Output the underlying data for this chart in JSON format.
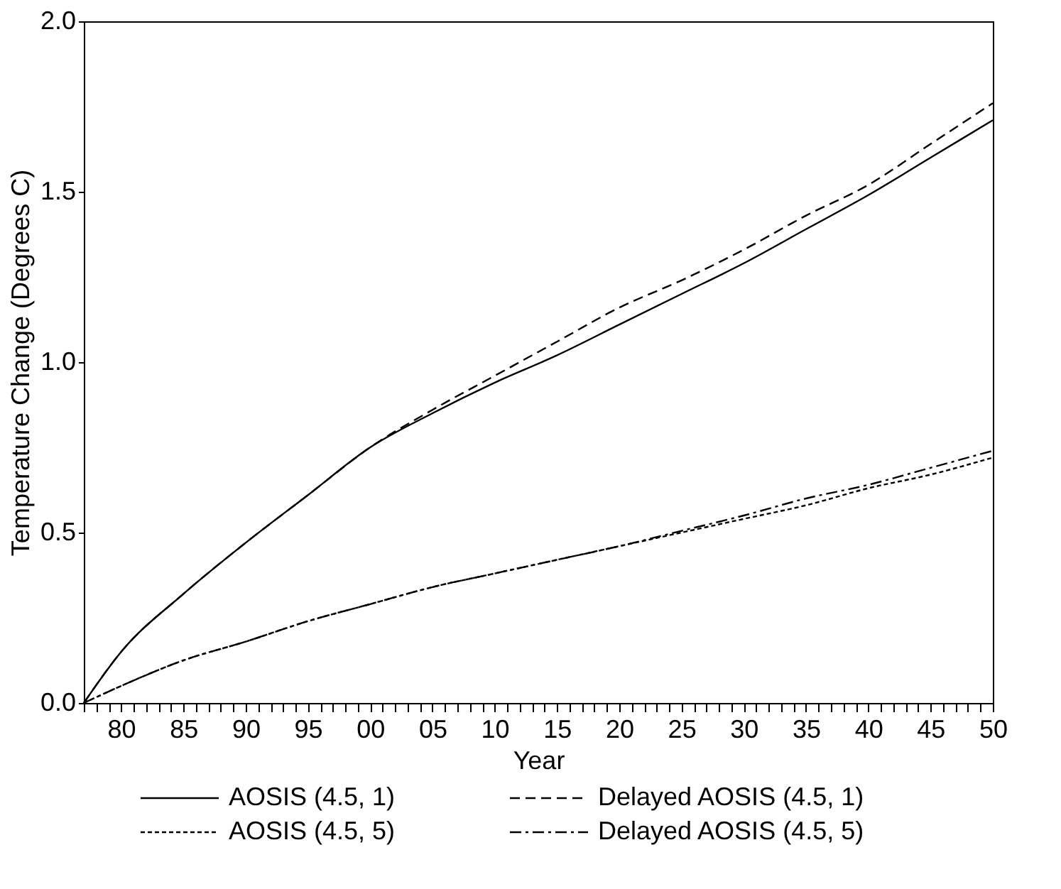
{
  "chart_data": {
    "type": "line",
    "xlabel": "Year",
    "ylabel": "Temperature Change (Degrees C)",
    "xlim": [
      1977,
      2050
    ],
    "ylim": [
      0,
      2.0
    ],
    "xticks": [
      {
        "value": 1977,
        "label": null
      },
      {
        "value": 1978,
        "label": null
      },
      {
        "value": 1979,
        "label": null
      },
      {
        "value": 1980,
        "label": "80"
      },
      {
        "value": 1981,
        "label": null
      },
      {
        "value": 1982,
        "label": null
      },
      {
        "value": 1983,
        "label": null
      },
      {
        "value": 1984,
        "label": null
      },
      {
        "value": 1985,
        "label": "85"
      },
      {
        "value": 1986,
        "label": null
      },
      {
        "value": 1987,
        "label": null
      },
      {
        "value": 1988,
        "label": null
      },
      {
        "value": 1989,
        "label": null
      },
      {
        "value": 1990,
        "label": "90"
      },
      {
        "value": 1991,
        "label": null
      },
      {
        "value": 1992,
        "label": null
      },
      {
        "value": 1993,
        "label": null
      },
      {
        "value": 1994,
        "label": null
      },
      {
        "value": 1995,
        "label": "95"
      },
      {
        "value": 1996,
        "label": null
      },
      {
        "value": 1997,
        "label": null
      },
      {
        "value": 1998,
        "label": null
      },
      {
        "value": 1999,
        "label": null
      },
      {
        "value": 2000,
        "label": "00"
      },
      {
        "value": 2001,
        "label": null
      },
      {
        "value": 2002,
        "label": null
      },
      {
        "value": 2003,
        "label": null
      },
      {
        "value": 2004,
        "label": null
      },
      {
        "value": 2005,
        "label": "05"
      },
      {
        "value": 2006,
        "label": null
      },
      {
        "value": 2007,
        "label": null
      },
      {
        "value": 2008,
        "label": null
      },
      {
        "value": 2009,
        "label": null
      },
      {
        "value": 2010,
        "label": "10"
      },
      {
        "value": 2011,
        "label": null
      },
      {
        "value": 2012,
        "label": null
      },
      {
        "value": 2013,
        "label": null
      },
      {
        "value": 2014,
        "label": null
      },
      {
        "value": 2015,
        "label": "15"
      },
      {
        "value": 2016,
        "label": null
      },
      {
        "value": 2017,
        "label": null
      },
      {
        "value": 2018,
        "label": null
      },
      {
        "value": 2019,
        "label": null
      },
      {
        "value": 2020,
        "label": "20"
      },
      {
        "value": 2021,
        "label": null
      },
      {
        "value": 2022,
        "label": null
      },
      {
        "value": 2023,
        "label": null
      },
      {
        "value": 2024,
        "label": null
      },
      {
        "value": 2025,
        "label": "25"
      },
      {
        "value": 2026,
        "label": null
      },
      {
        "value": 2027,
        "label": null
      },
      {
        "value": 2028,
        "label": null
      },
      {
        "value": 2029,
        "label": null
      },
      {
        "value": 2030,
        "label": "30"
      },
      {
        "value": 2031,
        "label": null
      },
      {
        "value": 2032,
        "label": null
      },
      {
        "value": 2033,
        "label": null
      },
      {
        "value": 2034,
        "label": null
      },
      {
        "value": 2035,
        "label": "35"
      },
      {
        "value": 2036,
        "label": null
      },
      {
        "value": 2037,
        "label": null
      },
      {
        "value": 2038,
        "label": null
      },
      {
        "value": 2039,
        "label": null
      },
      {
        "value": 2040,
        "label": "40"
      },
      {
        "value": 2041,
        "label": null
      },
      {
        "value": 2042,
        "label": null
      },
      {
        "value": 2043,
        "label": null
      },
      {
        "value": 2044,
        "label": null
      },
      {
        "value": 2045,
        "label": "45"
      },
      {
        "value": 2046,
        "label": null
      },
      {
        "value": 2047,
        "label": null
      },
      {
        "value": 2048,
        "label": null
      },
      {
        "value": 2049,
        "label": null
      },
      {
        "value": 2050,
        "label": "50"
      }
    ],
    "yticks": [
      {
        "value": 0,
        "label": "0.0"
      },
      {
        "value": 0.5,
        "label": "0.5"
      },
      {
        "value": 1.0,
        "label": "1.0"
      },
      {
        "value": 1.5,
        "label": "1.5"
      },
      {
        "value": 2.0,
        "label": "2.0"
      }
    ],
    "x": [
      1977,
      1980,
      1985,
      1990,
      1995,
      2000,
      2005,
      2010,
      2015,
      2020,
      2025,
      2030,
      2035,
      2040,
      2045,
      2050
    ],
    "legend": "bottom",
    "grid": false,
    "marker": "none",
    "series": [
      {
        "name": "AOSIS (4.5, 1)",
        "color": "#000000",
        "line_style": "solid",
        "values": [
          0,
          0.15,
          0.32,
          0.47,
          0.61,
          0.75,
          0.85,
          0.94,
          1.02,
          1.11,
          1.2,
          1.29,
          1.39,
          1.49,
          1.6,
          1.71
        ]
      },
      {
        "name": "Delayed AOSIS (4.5, 1)",
        "color": "#000000",
        "line_style": "dashed",
        "values": [
          0,
          0.15,
          0.32,
          0.47,
          0.61,
          0.75,
          0.86,
          0.96,
          1.06,
          1.16,
          1.24,
          1.33,
          1.43,
          1.52,
          1.64,
          1.76
        ]
      },
      {
        "name": "AOSIS (4.5, 5)",
        "color": "#000000",
        "line_style": "dotted",
        "values": [
          0,
          0.05,
          0.125,
          0.18,
          0.24,
          0.29,
          0.34,
          0.38,
          0.42,
          0.46,
          0.5,
          0.54,
          0.58,
          0.63,
          0.67,
          0.72
        ]
      },
      {
        "name": "Delayed AOSIS (4.5, 5)",
        "color": "#000000",
        "line_style": "dashdot",
        "values": [
          0,
          0.05,
          0.125,
          0.18,
          0.24,
          0.29,
          0.34,
          0.38,
          0.42,
          0.46,
          0.505,
          0.55,
          0.6,
          0.64,
          0.69,
          0.74
        ]
      }
    ]
  }
}
